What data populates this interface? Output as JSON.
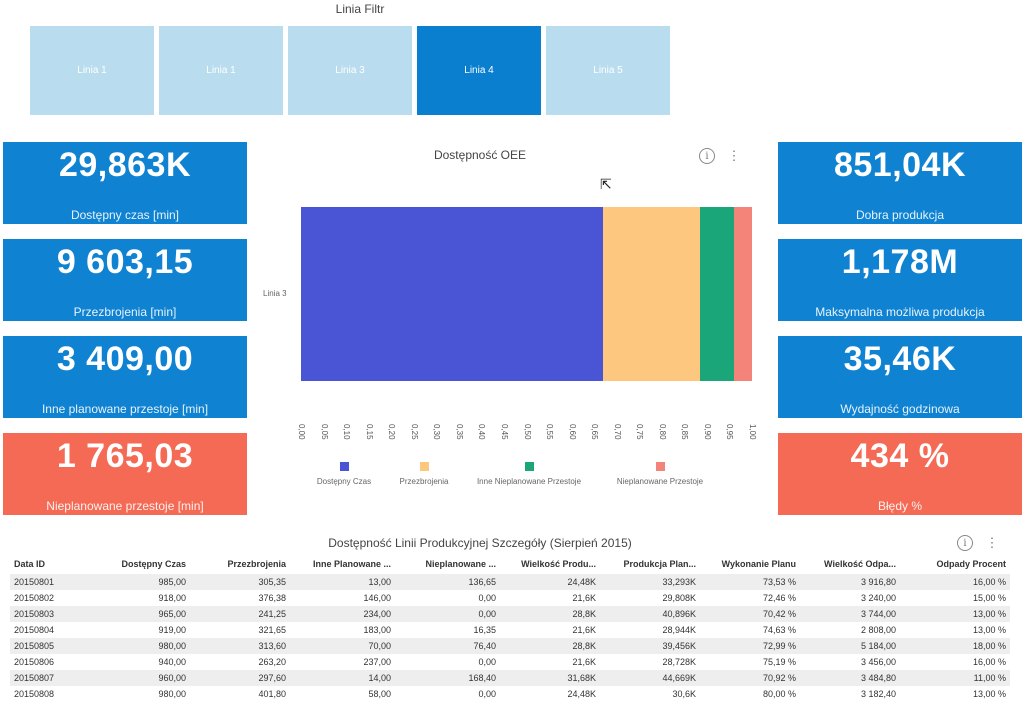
{
  "filter": {
    "title": "Linia Filtr",
    "items": [
      "Linia 1",
      "Linia 1",
      "Linia 3",
      "Linia 4",
      "Linia 5"
    ],
    "selected_index": 3
  },
  "kpis_left": [
    {
      "value": "29,863K",
      "label": "Dostępny czas [min]",
      "color": "#0f82d2"
    },
    {
      "value": "9 603,15",
      "label": "Przezbrojenia [min]",
      "color": "#0f82d2"
    },
    {
      "value": "3 409,00",
      "label": "Inne planowane przestoje [min]",
      "color": "#0f82d2"
    },
    {
      "value": "1 765,03",
      "label": "Nieplanowane przestoje [min]",
      "color": "#f46a55"
    }
  ],
  "kpis_right": [
    {
      "value": "851,04K",
      "label": "Dobra produkcja",
      "color": "#0f82d2"
    },
    {
      "value": "1,178M",
      "label": "Maksymalna możliwa produkcja",
      "color": "#0f82d2"
    },
    {
      "value": "35,46K",
      "label": "Wydajność godzinowa",
      "color": "#0f82d2"
    },
    {
      "value": "434 %",
      "label": "Błędy %",
      "color": "#f46a55"
    }
  ],
  "chart_data": {
    "type": "bar",
    "orientation": "horizontal",
    "stacked": true,
    "percent": true,
    "title": "Dostępność OEE",
    "categories": [
      "Linia 3"
    ],
    "series": [
      {
        "name": "Dostępny Czas",
        "values": [
          0.67
        ],
        "color": "#4a55d6"
      },
      {
        "name": "Przezbrojenia",
        "values": [
          0.215
        ],
        "color": "#fdc77f"
      },
      {
        "name": "Inne Nieplanowane Przestoje",
        "values": [
          0.076
        ],
        "color": "#1aa679"
      },
      {
        "name": "Nieplanowane Przestoje",
        "values": [
          0.039
        ],
        "color": "#f4837a"
      }
    ],
    "xlim": [
      0,
      1
    ],
    "x_ticks": [
      "0,00",
      "0,05",
      "0,10",
      "0,15",
      "0,20",
      "0,25",
      "0,30",
      "0,35",
      "0,40",
      "0,45",
      "0,50",
      "0,55",
      "0,60",
      "0,65",
      "0,70",
      "0,75",
      "0,80",
      "0,85",
      "0,90",
      "0,95",
      "1,00"
    ],
    "legend_position": "bottom"
  },
  "table": {
    "title": "Dostępność Linii Produkcyjnej Szczegóły (Sierpień 2015)",
    "columns": [
      "Data ID",
      "Dostępny Czas",
      "Przezbrojenia",
      "Inne Planowane ...",
      "Nieplanowane ...",
      "Wielkość Produ...",
      "Produkcja Plan...",
      "Wykonanie Planu",
      "Wielkość Odpa...",
      "Odpady Procent"
    ],
    "rows": [
      [
        "20150801",
        "985,00",
        "305,35",
        "13,00",
        "136,65",
        "24,48K",
        "33,293K",
        "73,53 %",
        "3 916,80",
        "16,00 %"
      ],
      [
        "20150802",
        "918,00",
        "376,38",
        "146,00",
        "0,00",
        "21,6K",
        "29,808K",
        "72,46 %",
        "3 240,00",
        "15,00 %"
      ],
      [
        "20150803",
        "965,00",
        "241,25",
        "234,00",
        "0,00",
        "28,8K",
        "40,896K",
        "70,42 %",
        "3 744,00",
        "13,00 %"
      ],
      [
        "20150804",
        "919,00",
        "321,65",
        "183,00",
        "16,35",
        "21,6K",
        "28,944K",
        "74,63 %",
        "2 808,00",
        "13,00 %"
      ],
      [
        "20150805",
        "980,00",
        "313,60",
        "70,00",
        "76,40",
        "28,8K",
        "39,456K",
        "72,99 %",
        "5 184,00",
        "18,00 %"
      ],
      [
        "20150806",
        "940,00",
        "263,20",
        "237,00",
        "0,00",
        "21,6K",
        "28,728K",
        "75,19 %",
        "3 456,00",
        "16,00 %"
      ],
      [
        "20150807",
        "960,00",
        "297,60",
        "14,00",
        "168,40",
        "31,68K",
        "44,669K",
        "70,92 %",
        "3 484,80",
        "11,00 %"
      ],
      [
        "20150808",
        "980,00",
        "401,80",
        "58,00",
        "0,00",
        "24,48K",
        "30,6K",
        "80,00 %",
        "3 182,40",
        "13,00 %"
      ]
    ]
  },
  "icons": {
    "info": "i",
    "more": "⋮",
    "cursor": "⇱"
  }
}
